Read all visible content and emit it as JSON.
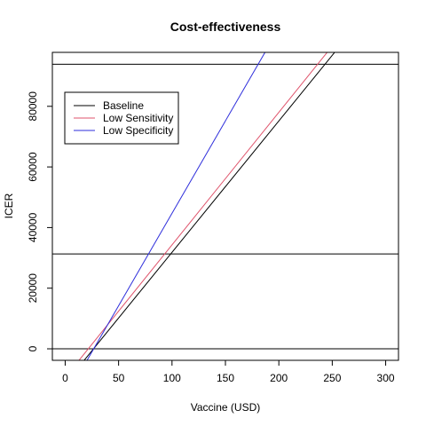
{
  "chart_data": {
    "type": "line",
    "title": "Cost-effectiveness",
    "xlabel": "Vaccine (USD)",
    "ylabel": "ICER",
    "xlim": [
      -12,
      312
    ],
    "ylim": [
      -3800,
      97800
    ],
    "xticks": [
      0,
      50,
      100,
      150,
      200,
      250,
      300
    ],
    "yticks": [
      0,
      20000,
      40000,
      60000,
      80000
    ],
    "grid": false,
    "legend_position": "top-left",
    "series": [
      {
        "name": "Baseline",
        "color": "#000000",
        "x": [
          -12,
          312
        ],
        "y": [
          -16700,
          123700
        ]
      },
      {
        "name": "Low Sensitivity",
        "color": "#DF536B",
        "x": [
          -12,
          312
        ],
        "y": [
          -14700,
          127000
        ]
      },
      {
        "name": "Low Specificity",
        "color": "#2E2EDB",
        "x": [
          -12,
          312
        ],
        "y": [
          -23600,
          174000
        ]
      }
    ],
    "hlines": [
      {
        "y": 0,
        "color": "#000000"
      },
      {
        "y": 31300,
        "color": "#000000"
      },
      {
        "y": 93900,
        "color": "#000000"
      }
    ]
  }
}
